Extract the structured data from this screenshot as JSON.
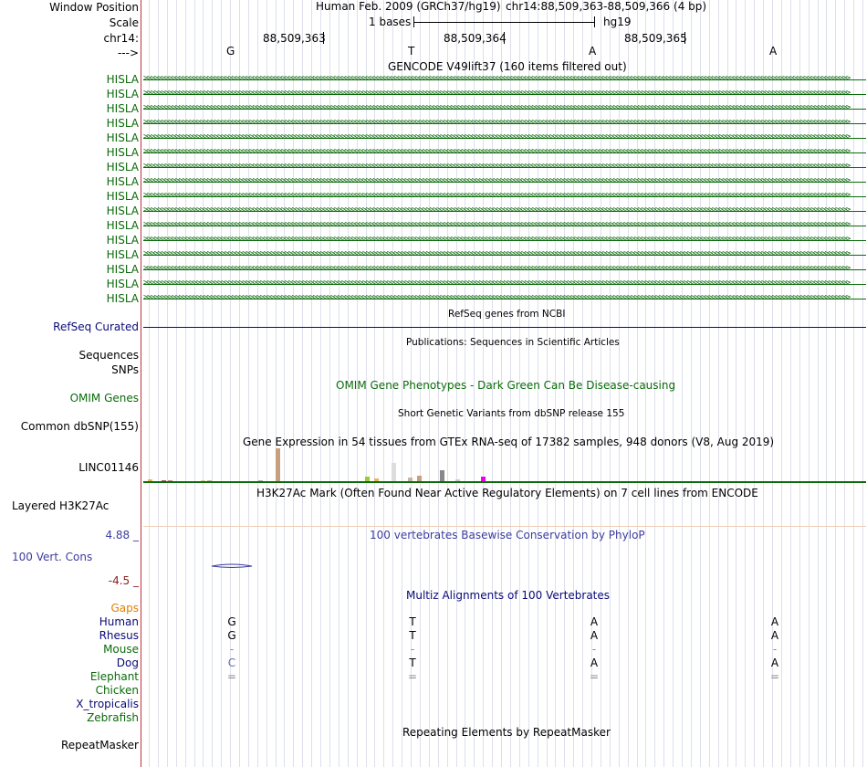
{
  "labels": {
    "window_position": "Window Position",
    "scale": "Scale",
    "chrom": "chr14:",
    "strand": "--->",
    "refseq": "RefSeq Curated",
    "sequences": "Sequences",
    "snps": "SNPs",
    "omim": "OMIM Genes",
    "common_dbsnp": "Common dbSNP(155)",
    "gtex_gene": "LINC01146",
    "layered": "Layered H3K27Ac",
    "cons_max": "4.88 _",
    "cons_label": "100 Vert. Cons",
    "cons_min": "-4.5 _",
    "gaps": "Gaps",
    "repeatmasker": "RepeatMasker"
  },
  "header": {
    "assembly": "Human Feb. 2009 (GRCh37/hg19)",
    "position": "chr14:88,509,363-88,509,366 (4 bp)",
    "scale_text": "1 bases",
    "scale_db": "hg19",
    "coord1": "88,509,363",
    "coord2": "88,509,364",
    "coord3": "88,509,365"
  },
  "bases": [
    "G",
    "T",
    "A",
    "A"
  ],
  "titles": {
    "gencode": "GENCODE V49lift37 (160 items filtered out)",
    "refseq": "RefSeq genes from NCBI",
    "publications": "Publications: Sequences in Scientific Articles",
    "omim": "OMIM Gene Phenotypes - Dark Green Can Be Disease-causing",
    "dbsnp": "Short Genetic Variants from dbSNP release 155",
    "gtex": "Gene Expression in 54 tissues from GTEx RNA-seq of 17382 samples, 948 donors (V8, Aug 2019)",
    "h3k27ac": "H3K27Ac Mark (Often Found Near Active Regulatory Elements) on 7 cell lines from ENCODE",
    "phylop": "100 vertebrates Basewise Conservation by PhyloP",
    "multiz": "Multiz Alignments of 100 Vertebrates",
    "rmsk": "Repeating Elements by RepeatMasker"
  },
  "gencode_items": [
    "HISLA",
    "HISLA",
    "HISLA",
    "HISLA",
    "HISLA",
    "HISLA",
    "HISLA",
    "HISLA",
    "HISLA",
    "HISLA",
    "HISLA",
    "HISLA",
    "HISLA",
    "HISLA",
    "HISLA",
    "HISLA"
  ],
  "species": [
    {
      "name": "Human",
      "color": "#0a0a78",
      "bases": [
        "G",
        "T",
        "A",
        "A"
      ]
    },
    {
      "name": "Rhesus",
      "color": "#0a0a78",
      "bases": [
        "G",
        "T",
        "A",
        "A"
      ]
    },
    {
      "name": "Mouse",
      "color": "#0b6b0b",
      "bases": [
        "-",
        "-",
        "-",
        "-"
      ]
    },
    {
      "name": "Dog",
      "color": "#0a0a78",
      "bases": [
        "C",
        "T",
        "A",
        "A"
      ]
    },
    {
      "name": "Elephant",
      "color": "#0b6b0b",
      "bases": [
        "=",
        "=",
        "=",
        "="
      ]
    },
    {
      "name": "Chicken",
      "color": "#0b6b0b",
      "bases": [
        "",
        "",
        "",
        ""
      ]
    },
    {
      "name": "X_tropicalis",
      "color": "#0a0a78",
      "bases": [
        "",
        "",
        "",
        ""
      ]
    },
    {
      "name": "Zebrafish",
      "color": "#0b6b0b",
      "bases": [
        "",
        "",
        "",
        ""
      ]
    }
  ],
  "colors": {
    "gencode_green": "#0b6b0b",
    "refseq_navy": "#0a0a78",
    "omim_green": "#0b6b0b",
    "phylop_blue": "#3c3ca0",
    "gaps_orange": "#e08000",
    "separator_red": "#c0303a"
  },
  "gtex_bars": [
    {
      "color": "#e6b45a",
      "value": 2
    },
    {
      "color": "#a05050",
      "value": 1
    },
    {
      "color": "#c08080",
      "value": 1
    },
    {
      "color": "#d0d080",
      "value": 1
    },
    {
      "color": "#c0b0a0",
      "value": 1
    },
    {
      "color": "#aaaaaa",
      "value": 1
    },
    {
      "color": "#c8a080",
      "value": 35
    },
    {
      "color": "#99cc33",
      "value": 5
    },
    {
      "color": "#e6b45a",
      "value": 3
    },
    {
      "color": "#dddddd",
      "value": 19
    },
    {
      "color": "#c8b4a0",
      "value": 4
    },
    {
      "color": "#c8a080",
      "value": 6
    },
    {
      "color": "#888888",
      "value": 12
    },
    {
      "color": "#cccccc",
      "value": 2
    },
    {
      "color": "#ee00ee",
      "value": 5
    }
  ]
}
